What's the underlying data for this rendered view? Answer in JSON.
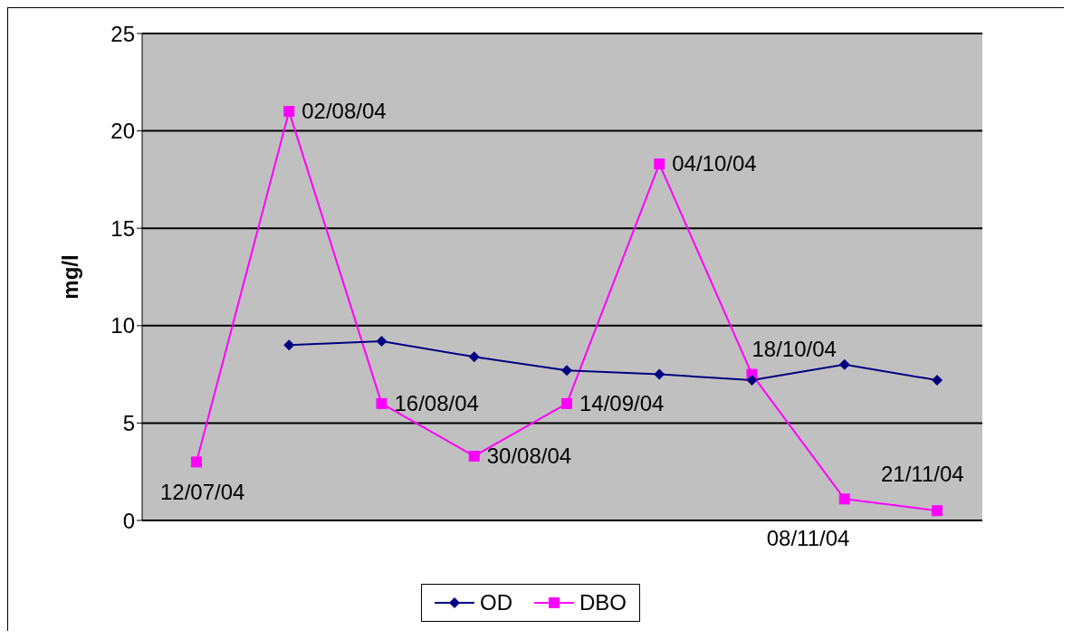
{
  "chart_data": {
    "type": "line",
    "ylabel": "mg/l",
    "categories": [
      null,
      null,
      null,
      null,
      null,
      null,
      null,
      null,
      null
    ],
    "ylim": [
      0,
      25
    ],
    "yticks": [
      0,
      5,
      10,
      15,
      20,
      25
    ],
    "grid": "y",
    "legend": "bottom",
    "line_style": "solid",
    "series": [
      {
        "name": "OD",
        "color": "#000080",
        "marker": "diamond",
        "values": [
          null,
          9.0,
          9.2,
          8.4,
          7.7,
          7.5,
          7.2,
          8.0,
          7.2
        ]
      },
      {
        "name": "DBO",
        "color": "#ff00ff",
        "marker": "square",
        "values": [
          3.0,
          21.0,
          6.0,
          3.3,
          6.0,
          18.3,
          7.5,
          1.1,
          0.5
        ],
        "value_labels": [
          "12/07/04",
          "02/08/04",
          "16/08/04",
          "30/08/04",
          "14/09/04",
          "04/10/04",
          "18/10/04",
          "08/11/04",
          "21/11/04"
        ]
      }
    ]
  }
}
